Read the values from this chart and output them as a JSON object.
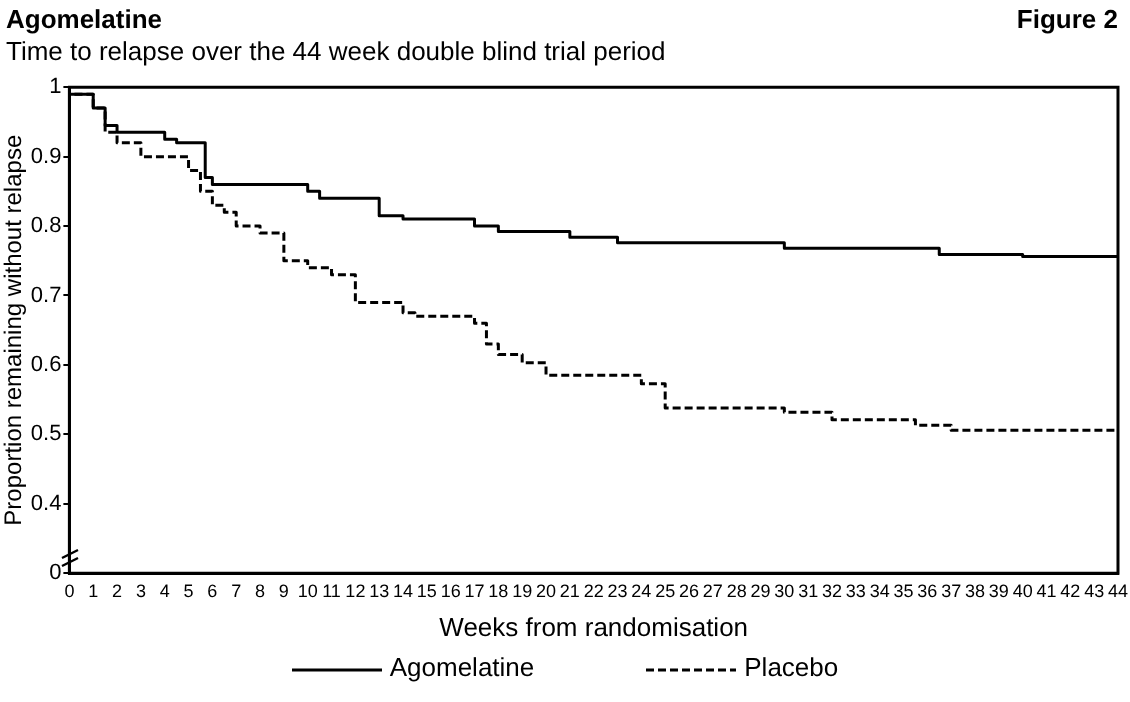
{
  "chart_data": {
    "type": "step",
    "title": "Agomelatine",
    "subtitle": "Time to relapse over the 44 week double blind trial period",
    "annotations": [
      "Figure 2"
    ],
    "xlabel": "Weeks from randomisation",
    "ylabel": "Proportion remaining without relapse",
    "xlim": [
      0,
      44
    ],
    "xticks": [
      0,
      1,
      2,
      3,
      4,
      5,
      6,
      7,
      8,
      9,
      10,
      11,
      12,
      13,
      14,
      15,
      16,
      17,
      18,
      19,
      20,
      21,
      22,
      23,
      24,
      25,
      26,
      27,
      28,
      29,
      30,
      31,
      32,
      33,
      34,
      35,
      36,
      37,
      38,
      39,
      40,
      41,
      42,
      43,
      44
    ],
    "ylim": [
      0.3,
      1.0
    ],
    "yticks": [
      {
        "value": 0.3,
        "label": "0"
      },
      0.4,
      0.5,
      0.6,
      0.7,
      0.8,
      0.9,
      1.0
    ],
    "grid": false,
    "legend": "bottom",
    "marker": "none",
    "series": [
      {
        "name": "Agomelatine",
        "color": "#000000",
        "line_style": "solid",
        "x": [
          0,
          1,
          1.5,
          2,
          4,
          4.5,
          5.7,
          6,
          10,
          10.5,
          13,
          14,
          17,
          18,
          21,
          23,
          30,
          36.5,
          40,
          44
        ],
        "values": [
          1.0,
          0.99,
          0.97,
          0.945,
          0.935,
          0.925,
          0.92,
          0.87,
          0.86,
          0.85,
          0.84,
          0.815,
          0.81,
          0.8,
          0.792,
          0.784,
          0.776,
          0.768,
          0.759,
          0.756
        ]
      },
      {
        "name": "Placebo",
        "color": "#000000",
        "line_style": "dashed",
        "x": [
          0,
          1,
          1.5,
          2,
          3,
          5,
          5.5,
          6,
          6.5,
          7,
          8,
          9,
          10,
          11,
          12,
          14,
          14.5,
          17,
          17.5,
          18,
          19,
          20,
          24,
          25,
          30,
          32,
          35.5,
          37,
          38,
          44
        ],
        "values": [
          1.0,
          0.99,
          0.97,
          0.935,
          0.92,
          0.9,
          0.88,
          0.85,
          0.83,
          0.82,
          0.8,
          0.79,
          0.75,
          0.74,
          0.73,
          0.69,
          0.675,
          0.67,
          0.66,
          0.63,
          0.615,
          0.603,
          0.585,
          0.573,
          0.538,
          0.532,
          0.521,
          0.513,
          0.506,
          0.506
        ]
      }
    ]
  }
}
